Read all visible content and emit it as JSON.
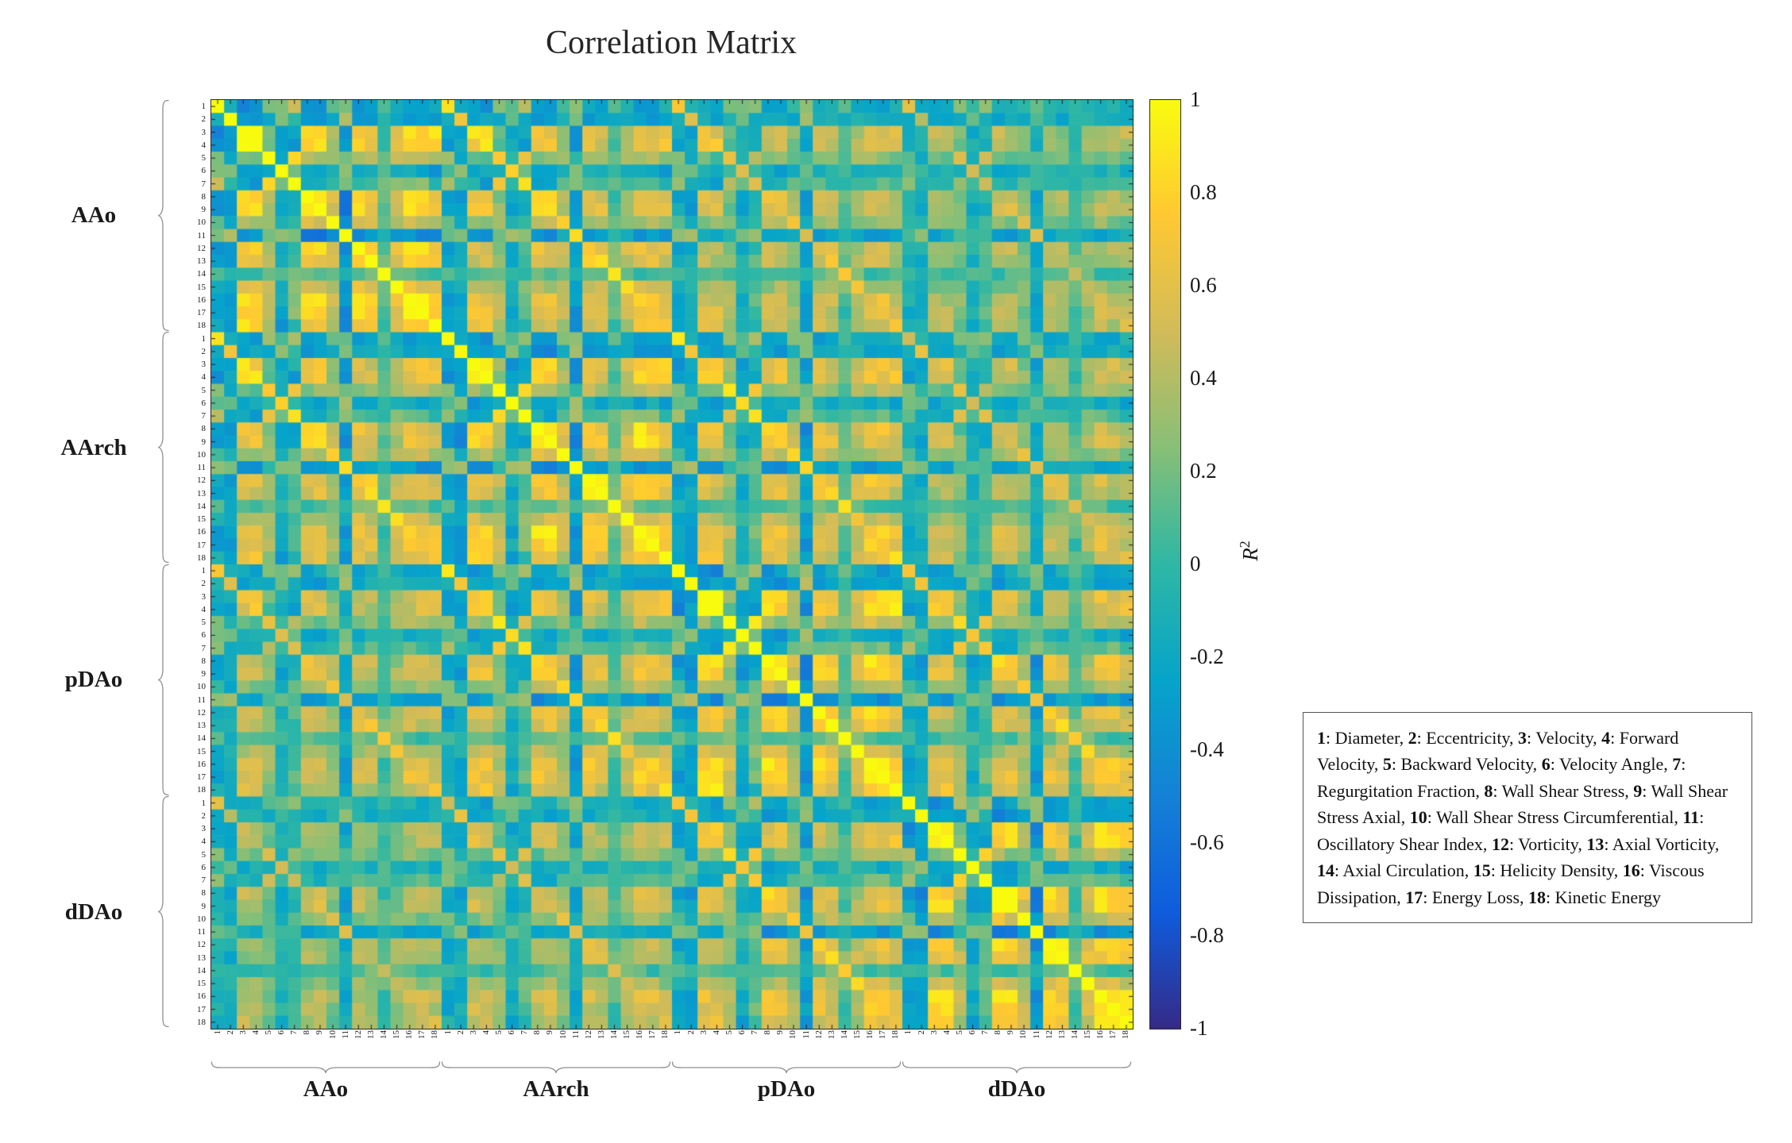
{
  "title": "Correlation Matrix",
  "chart_data": {
    "type": "heatmap",
    "title": "Correlation Matrix",
    "groups": [
      "AAo",
      "AArch",
      "pDAo",
      "dDAo"
    ],
    "indices": [
      1,
      2,
      3,
      4,
      5,
      6,
      7,
      8,
      9,
      10,
      11,
      12,
      13,
      14,
      15,
      16,
      17,
      18
    ],
    "colormap": "parula",
    "colormap_stops": [
      "#352a87",
      "#0f5cdd",
      "#1481d6",
      "#06a4ca",
      "#2eb7a4",
      "#87bf77",
      "#d1bb59",
      "#fec832",
      "#f9fb0e"
    ],
    "colorbar": {
      "range": [
        -1,
        1
      ],
      "tick_labels": [
        "1",
        "0.8",
        "0.6",
        "0.4",
        "0.2",
        "0",
        "-0.2",
        "-0.4",
        "-0.6",
        "-0.8",
        "-1"
      ],
      "label_base": "R",
      "label_sup": "2"
    },
    "variables": [
      {
        "n": "1",
        "label": "Diameter"
      },
      {
        "n": "2",
        "label": "Eccentricity"
      },
      {
        "n": "3",
        "label": "Velocity"
      },
      {
        "n": "4",
        "label": "Forward Velocity"
      },
      {
        "n": "5",
        "label": "Backward Velocity"
      },
      {
        "n": "6",
        "label": "Velocity Angle"
      },
      {
        "n": "7",
        "label": "Regurgitation Fraction"
      },
      {
        "n": "8",
        "label": "Wall Shear Stress"
      },
      {
        "n": "9",
        "label": "Wall Shear Stress Axial"
      },
      {
        "n": "10",
        "label": "Wall Shear Stress Circumferential"
      },
      {
        "n": "11",
        "label": "Oscillatory Shear Index"
      },
      {
        "n": "12",
        "label": "Vorticity"
      },
      {
        "n": "13",
        "label": "Axial Vorticity"
      },
      {
        "n": "14",
        "label": "Axial Circulation"
      },
      {
        "n": "15",
        "label": "Helicity Density"
      },
      {
        "n": "16",
        "label": "Viscous Dissipation"
      },
      {
        "n": "17",
        "label": "Energy Loss"
      },
      {
        "n": "18",
        "label": "Kinetic Energy"
      }
    ],
    "matrix_model": {
      "description": "72x72 correlation matrix (4 regions x 18 variables) estimated from the figure: within-region base pattern scaled by cross-region attenuation, diagonal = 1, with deterministic texture noise",
      "base_matrix_18": [
        [
          1,
          -0.2,
          -0.4,
          -0.4,
          0.3,
          0.2,
          0.4,
          -0.3,
          -0.3,
          0.2,
          0.3,
          -0.3,
          -0.2,
          0.1,
          -0.2,
          -0.3,
          -0.3,
          -0.2
        ],
        [
          -0.2,
          1,
          -0.3,
          -0.3,
          -0.2,
          0.3,
          -0.1,
          -0.4,
          -0.4,
          -0.2,
          0.4,
          -0.3,
          -0.3,
          -0.1,
          -0.2,
          -0.3,
          -0.3,
          -0.3
        ],
        [
          -0.4,
          -0.3,
          1,
          0.95,
          0.3,
          -0.3,
          -0.2,
          0.8,
          0.8,
          0.4,
          -0.4,
          0.7,
          0.6,
          0.1,
          0.5,
          0.8,
          0.8,
          0.85
        ],
        [
          -0.4,
          -0.3,
          0.95,
          1,
          0.2,
          -0.3,
          -0.3,
          0.8,
          0.8,
          0.4,
          -0.4,
          0.7,
          0.6,
          0.1,
          0.5,
          0.8,
          0.8,
          0.85
        ],
        [
          0.3,
          -0.2,
          0.3,
          0.2,
          1,
          -0.1,
          0.8,
          0.3,
          0.3,
          0.3,
          0.1,
          0.4,
          0.4,
          0.2,
          0.4,
          0.5,
          0.5,
          0.4
        ],
        [
          0.2,
          0.3,
          -0.3,
          -0.3,
          -0.1,
          1,
          0.1,
          -0.3,
          -0.3,
          -0.1,
          0.3,
          -0.2,
          -0.2,
          0,
          -0.1,
          -0.2,
          -0.2,
          -0.3
        ],
        [
          0.4,
          -0.1,
          -0.2,
          -0.3,
          0.8,
          0.1,
          1,
          -0.2,
          -0.2,
          0.1,
          0.3,
          0.1,
          0.1,
          0.1,
          0.2,
          0.2,
          0.2,
          0
        ],
        [
          -0.3,
          -0.4,
          0.8,
          0.8,
          0.3,
          -0.3,
          -0.2,
          1,
          0.95,
          0.6,
          -0.5,
          0.8,
          0.7,
          0.1,
          0.5,
          0.85,
          0.8,
          0.7
        ],
        [
          -0.3,
          -0.4,
          0.8,
          0.8,
          0.3,
          -0.3,
          -0.2,
          0.95,
          1,
          0.5,
          -0.5,
          0.8,
          0.7,
          0.1,
          0.5,
          0.85,
          0.8,
          0.7
        ],
        [
          0.2,
          -0.2,
          0.4,
          0.4,
          0.3,
          -0.1,
          0.1,
          0.6,
          0.5,
          1,
          -0.3,
          0.5,
          0.5,
          0.2,
          0.4,
          0.5,
          0.5,
          0.4
        ],
        [
          0.3,
          0.4,
          -0.4,
          -0.4,
          0.1,
          0.3,
          0.3,
          -0.5,
          -0.5,
          -0.3,
          1,
          -0.4,
          -0.3,
          0,
          -0.3,
          -0.4,
          -0.4,
          -0.4
        ],
        [
          -0.3,
          -0.3,
          0.7,
          0.7,
          0.4,
          -0.2,
          0.1,
          0.8,
          0.8,
          0.5,
          -0.4,
          1,
          0.85,
          0.2,
          0.6,
          0.85,
          0.8,
          0.7
        ],
        [
          -0.2,
          -0.3,
          0.6,
          0.6,
          0.4,
          -0.2,
          0.1,
          0.7,
          0.7,
          0.5,
          -0.3,
          0.85,
          1,
          0.3,
          0.6,
          0.7,
          0.7,
          0.6
        ],
        [
          0.1,
          -0.1,
          0.1,
          0.1,
          0.2,
          0,
          0.1,
          0.1,
          0.1,
          0.2,
          0,
          0.2,
          0.3,
          1,
          0.3,
          0.1,
          0.1,
          0.1
        ],
        [
          -0.2,
          -0.2,
          0.5,
          0.5,
          0.4,
          -0.1,
          0.2,
          0.5,
          0.5,
          0.4,
          -0.3,
          0.6,
          0.6,
          0.3,
          1,
          0.6,
          0.6,
          0.5
        ],
        [
          -0.3,
          -0.3,
          0.8,
          0.8,
          0.5,
          -0.2,
          0.2,
          0.85,
          0.85,
          0.5,
          -0.4,
          0.85,
          0.7,
          0.1,
          0.6,
          1,
          0.95,
          0.8
        ],
        [
          -0.3,
          -0.3,
          0.8,
          0.8,
          0.5,
          -0.2,
          0.2,
          0.8,
          0.8,
          0.5,
          -0.4,
          0.8,
          0.7,
          0.1,
          0.6,
          0.95,
          1,
          0.8
        ],
        [
          -0.2,
          -0.3,
          0.85,
          0.85,
          0.4,
          -0.3,
          0,
          0.7,
          0.7,
          0.4,
          -0.4,
          0.7,
          0.6,
          0.1,
          0.5,
          0.8,
          0.8,
          1
        ]
      ],
      "region_attenuation": [
        [
          1,
          0.8,
          0.65,
          0.5
        ],
        [
          0.8,
          1,
          0.8,
          0.6
        ],
        [
          0.65,
          0.8,
          1,
          0.75
        ],
        [
          0.5,
          0.6,
          0.75,
          1
        ]
      ],
      "noise_amplitude": 0.12
    }
  }
}
